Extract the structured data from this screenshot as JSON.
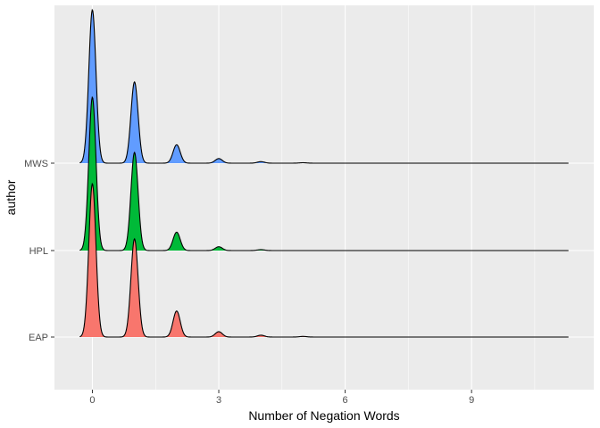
{
  "chart_data": {
    "type": "ridgeline",
    "xlabel": "Number of Negation Words",
    "ylabel": "author",
    "xlim": [
      -0.9,
      11.9
    ],
    "x_ticks": [
      0,
      3,
      6,
      9
    ],
    "x_tick_labels": [
      "0",
      "3",
      "6",
      "9"
    ],
    "x_range": [
      -0.3,
      11.3
    ],
    "grid": true,
    "legend": "none",
    "panel_background": "#ebebeb",
    "grid_color": "#ffffff",
    "outline_color": "#000000",
    "categories": [
      "EAP",
      "HPL",
      "MWS"
    ],
    "series": [
      {
        "name": "EAP",
        "color": "#f8766d",
        "peaks": [
          {
            "x": 0,
            "height": 1.0
          },
          {
            "x": 1,
            "height": 0.64
          },
          {
            "x": 2,
            "height": 0.17
          },
          {
            "x": 3,
            "height": 0.035
          },
          {
            "x": 4,
            "height": 0.012
          },
          {
            "x": 5,
            "height": 0.004
          }
        ]
      },
      {
        "name": "HPL",
        "color": "#00ba38",
        "peaks": [
          {
            "x": 0,
            "height": 1.0
          },
          {
            "x": 1,
            "height": 0.64
          },
          {
            "x": 2,
            "height": 0.12
          },
          {
            "x": 3,
            "height": 0.025
          },
          {
            "x": 4,
            "height": 0.006
          }
        ]
      },
      {
        "name": "MWS",
        "color": "#619cff",
        "peaks": [
          {
            "x": 0,
            "height": 1.0
          },
          {
            "x": 1,
            "height": 0.53
          },
          {
            "x": 2,
            "height": 0.12
          },
          {
            "x": 3,
            "height": 0.03
          },
          {
            "x": 4,
            "height": 0.01
          },
          {
            "x": 5,
            "height": 0.003
          }
        ]
      }
    ]
  }
}
